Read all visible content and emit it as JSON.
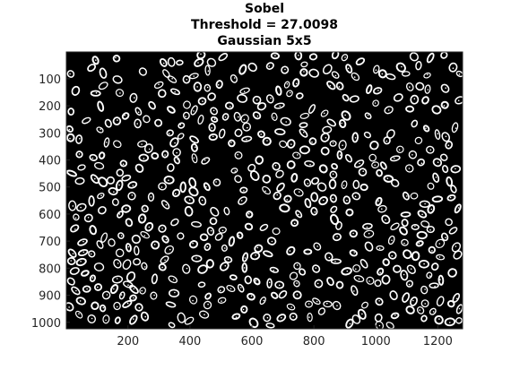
{
  "figure": {
    "title_lines": [
      "Sobel",
      "Threshold = 27.0098",
      "Gaussian 5x5"
    ],
    "image_description_note": "",
    "x_axis": {
      "ticks": [
        200,
        400,
        600,
        800,
        1000,
        1200
      ],
      "range": [
        1,
        1280
      ]
    },
    "y_axis": {
      "ticks": [
        100,
        200,
        300,
        400,
        500,
        600,
        700,
        800,
        900,
        1000
      ],
      "range": [
        1,
        1024
      ]
    },
    "colors": {
      "background": "#000000",
      "foreground": "#ffffff",
      "axis": "#262626"
    }
  }
}
